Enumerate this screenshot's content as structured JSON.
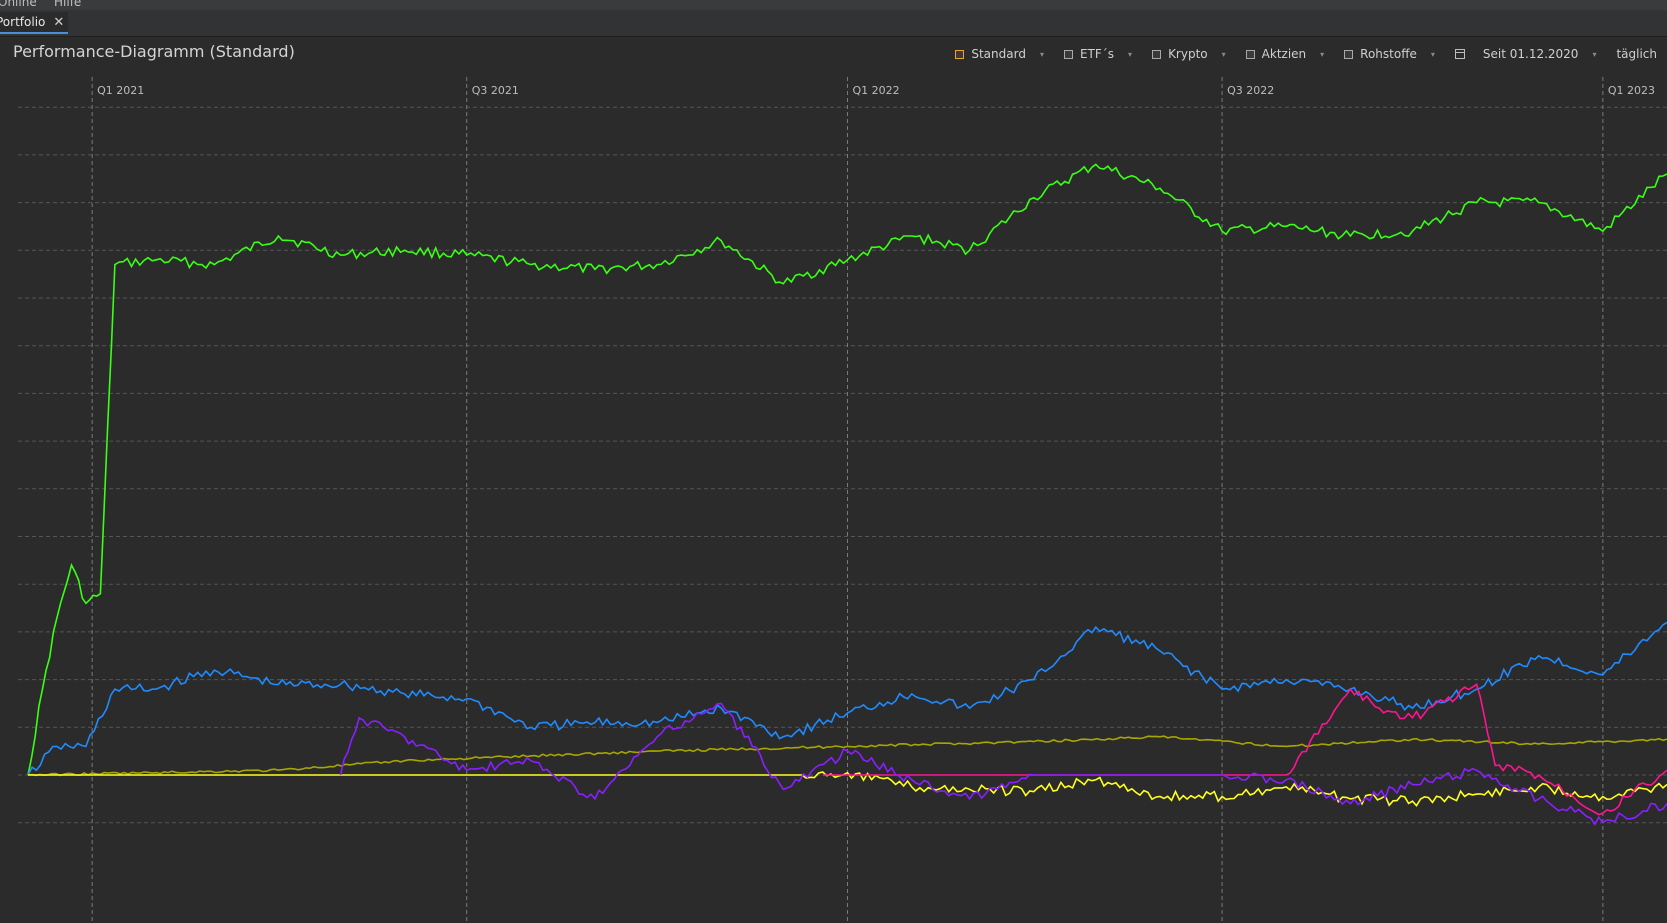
{
  "menubar": {
    "items": [
      "Online",
      "Hilfe"
    ]
  },
  "tab": {
    "label": "Portfolio"
  },
  "panel": {
    "title": "Performance-Diagramm (Standard)"
  },
  "toolbar": {
    "items": [
      {
        "label": "Standard",
        "checked": true
      },
      {
        "label": "ETF´s",
        "checked": false
      },
      {
        "label": "Krypto",
        "checked": false
      },
      {
        "label": "Aktzien",
        "checked": false
      },
      {
        "label": "Rohstoffe",
        "checked": false
      }
    ],
    "period": "Seit 01.12.2020",
    "interval": "täglich"
  },
  "chart_data": {
    "type": "line",
    "title": "Performance-Diagramm (Standard)",
    "x_ticks": [
      "Q1 2021",
      "Q3 2021",
      "Q1 2022",
      "Q3 2022",
      "Q1 2023"
    ],
    "x_tick_dates": [
      "2021-01-01",
      "2021-07-01",
      "2022-01-01",
      "2022-07-01",
      "2023-01-01"
    ],
    "xlim": [
      "2020-12-01",
      "2023-02-01"
    ],
    "y_ticks_labels_visible": false,
    "ylim": [
      -1,
      15
    ],
    "grid": true,
    "colors": {
      "green": "#39ff14",
      "blue": "#1f8bff",
      "olive": "#a6a600",
      "yellow": "#ffff20",
      "magenta": "#ff1493",
      "purple": "#8a1fff"
    },
    "series": [
      {
        "color": "#39ff14",
        "x": [
          "2020-12-01",
          "2020-12-08",
          "2020-12-15",
          "2020-12-22",
          "2020-12-29",
          "2021-01-05",
          "2021-01-12",
          "2021-02-01",
          "2021-03-01",
          "2021-04-01",
          "2021-05-01",
          "2021-06-01",
          "2021-07-01",
          "2021-08-01",
          "2021-09-01",
          "2021-10-01",
          "2021-11-01",
          "2021-12-01",
          "2022-01-01",
          "2022-02-01",
          "2022-03-01",
          "2022-04-01",
          "2022-05-01",
          "2022-06-01",
          "2022-07-01",
          "2022-08-01",
          "2022-09-01",
          "2022-10-01",
          "2022-11-01",
          "2022-12-01",
          "2023-01-01",
          "2023-02-01"
        ],
        "y": [
          0,
          1.8,
          3.3,
          4.4,
          3.6,
          3.8,
          10.7,
          10.8,
          10.7,
          11.3,
          10.9,
          11.0,
          10.9,
          10.7,
          10.6,
          10.7,
          11.2,
          10.3,
          10.8,
          11.3,
          11.0,
          12.1,
          12.8,
          12.3,
          11.4,
          11.5,
          11.3,
          11.4,
          12.0,
          12.0,
          11.4,
          12.6
        ]
      },
      {
        "color": "#1f8bff",
        "x": [
          "2020-12-01",
          "2020-12-15",
          "2020-12-29",
          "2021-01-12",
          "2021-02-01",
          "2021-03-01",
          "2021-04-01",
          "2021-05-01",
          "2021-06-01",
          "2021-07-01",
          "2021-08-01",
          "2021-09-01",
          "2021-10-01",
          "2021-11-01",
          "2021-12-01",
          "2022-01-01",
          "2022-02-01",
          "2022-03-01",
          "2022-04-01",
          "2022-05-01",
          "2022-06-01",
          "2022-07-01",
          "2022-08-01",
          "2022-09-01",
          "2022-10-01",
          "2022-11-01",
          "2022-12-01",
          "2023-01-01",
          "2023-02-01"
        ],
        "y": [
          0,
          0.6,
          0.6,
          1.8,
          1.8,
          2.2,
          1.9,
          1.9,
          1.7,
          1.6,
          1.0,
          1.1,
          1.1,
          1.4,
          0.8,
          1.3,
          1.7,
          1.4,
          2.0,
          3.1,
          2.6,
          1.8,
          2.0,
          1.8,
          1.4,
          1.8,
          2.5,
          2.1,
          3.2
        ]
      },
      {
        "color": "#a6a600",
        "x": [
          "2020-12-01",
          "2021-02-01",
          "2021-04-01",
          "2021-06-01",
          "2021-08-01",
          "2021-10-01",
          "2021-11-15",
          "2022-01-01",
          "2022-04-01",
          "2022-06-01",
          "2022-08-01",
          "2022-10-01",
          "2022-12-01",
          "2023-02-01"
        ],
        "y": [
          0,
          0.05,
          0.1,
          0.3,
          0.4,
          0.5,
          0.55,
          0.6,
          0.7,
          0.8,
          0.6,
          0.75,
          0.65,
          0.75
        ]
      },
      {
        "color": "#ffff20",
        "x": [
          "2020-12-01",
          "2021-06-01",
          "2021-12-10",
          "2022-01-01",
          "2022-02-01",
          "2022-03-01",
          "2022-04-01",
          "2022-05-01",
          "2022-06-01",
          "2022-07-01",
          "2022-08-01",
          "2022-09-01",
          "2022-10-01",
          "2022-11-01",
          "2022-12-01",
          "2023-01-01",
          "2023-02-01"
        ],
        "y": [
          0,
          0,
          0,
          0.05,
          -0.25,
          -0.3,
          -0.35,
          -0.1,
          -0.45,
          -0.45,
          -0.25,
          -0.5,
          -0.55,
          -0.4,
          -0.25,
          -0.45,
          -0.2
        ]
      },
      {
        "color": "#ff1493",
        "x": [
          "2021-12-20",
          "2022-08-01",
          "2022-09-01",
          "2022-09-15",
          "2022-10-01",
          "2022-11-01",
          "2022-11-10",
          "2022-12-01",
          "2023-01-01",
          "2023-02-01"
        ],
        "y": [
          0,
          0,
          1.8,
          1.4,
          1.2,
          1.9,
          0.2,
          0.0,
          -0.8,
          0.1
        ]
      },
      {
        "color": "#8a1fff",
        "x": [
          "2021-05-01",
          "2021-05-10",
          "2021-06-01",
          "2021-07-01",
          "2021-08-01",
          "2021-09-01",
          "2021-10-01",
          "2021-11-01",
          "2021-12-01",
          "2022-01-01",
          "2022-02-01",
          "2022-03-01",
          "2022-04-01",
          "2022-05-01",
          "2022-06-01",
          "2022-07-01",
          "2022-08-01",
          "2022-09-01",
          "2022-10-01",
          "2022-11-01",
          "2022-12-01",
          "2023-01-01",
          "2023-02-01"
        ],
        "y": [
          0,
          1.2,
          0.8,
          0.1,
          0.3,
          -0.5,
          0.8,
          1.5,
          -0.3,
          0.5,
          -0.1,
          -0.5,
          0,
          0,
          0,
          0,
          -0.1,
          -0.6,
          -0.2,
          0.1,
          -0.5,
          -1.0,
          -0.6
        ]
      }
    ]
  }
}
